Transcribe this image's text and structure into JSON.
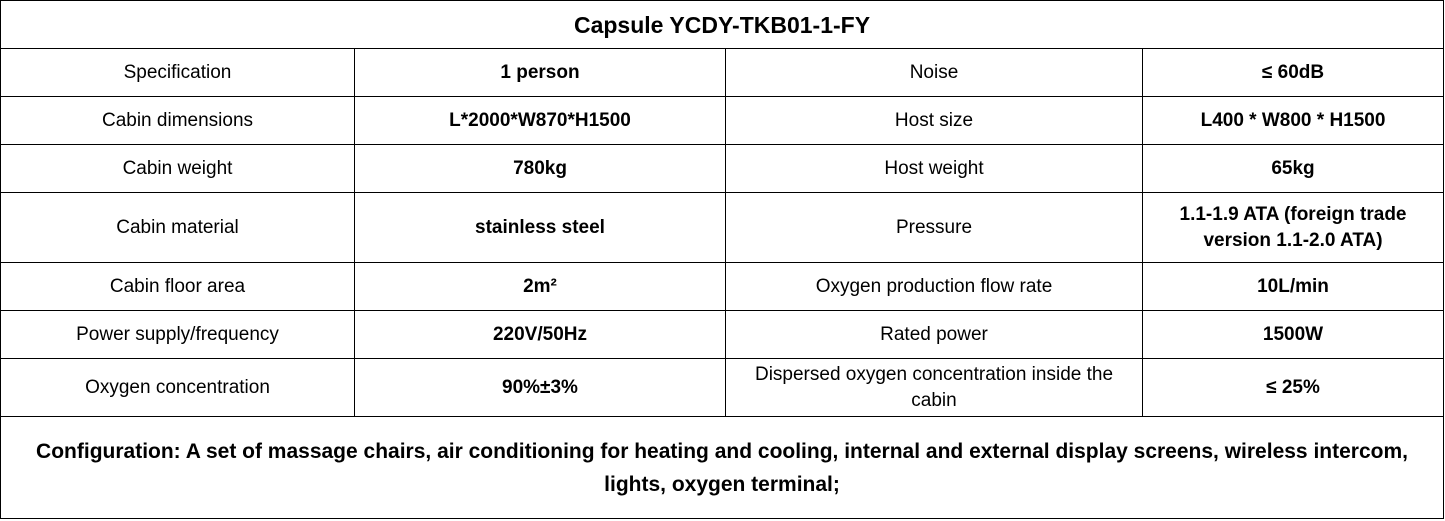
{
  "title": "Capsule YCDY-TKB01-1-FY",
  "rows": [
    {
      "label1": "Specification",
      "value1": "1 person",
      "label2": "Noise",
      "value2": "≤ 60dB"
    },
    {
      "label1": "Cabin dimensions",
      "value1": "L*2000*W870*H1500",
      "label2": "Host size",
      "value2": "L400 * W800 * H1500"
    },
    {
      "label1": "Cabin weight",
      "value1": "780kg",
      "label2": "Host weight",
      "value2": "65kg"
    },
    {
      "label1": "Cabin material",
      "value1": "stainless steel",
      "label2": "Pressure",
      "value2": "1.1-1.9 ATA (foreign trade version 1.1-2.0 ATA)"
    },
    {
      "label1": "Cabin floor area",
      "value1": "2m²",
      "label2": "Oxygen production flow rate",
      "value2": "10L/min"
    },
    {
      "label1": "Power supply/frequency",
      "value1": "220V/50Hz",
      "label2": "Rated power",
      "value2": "1500W"
    },
    {
      "label1": "Oxygen concentration",
      "value1": "90%±3%",
      "label2": "Dispersed oxygen concentration inside the cabin",
      "value2": "≤ 25%"
    }
  ],
  "configuration": "Configuration: A set of massage chairs, air conditioning for heating and cooling, internal and external display screens, wireless intercom, lights, oxygen terminal;"
}
